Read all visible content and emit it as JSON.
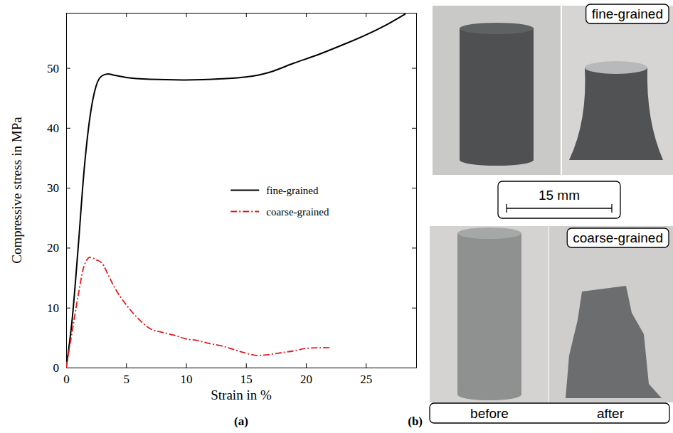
{
  "chart_data": {
    "type": "line",
    "x_label": "Strain in %",
    "y_label": "Compressive stress in MPa",
    "xlim": [
      0,
      29.2
    ],
    "ylim": [
      0,
      59.2
    ],
    "xticks": [
      0,
      5,
      10,
      15,
      20,
      25
    ],
    "yticks": [
      0,
      10,
      20,
      30,
      40,
      50
    ],
    "grid": false,
    "legend": "center right",
    "series": [
      {
        "name": "fine-grained",
        "color": "#000000",
        "line_style": "solid",
        "x": [
          0,
          0.5,
          1,
          1.5,
          2,
          2.5,
          3,
          3.5,
          4,
          5,
          7,
          10,
          13,
          15,
          16,
          17,
          19,
          21,
          23,
          25,
          27,
          28.3
        ],
        "values": [
          0,
          8,
          20,
          33,
          42,
          47,
          48.7,
          49,
          48.8,
          48.4,
          48.1,
          48,
          48.2,
          48.5,
          48.8,
          49.3,
          50.8,
          52.2,
          53.8,
          55.5,
          57.5,
          59
        ]
      },
      {
        "name": "coarse-grained",
        "color": "#e31a1c",
        "line_style": "dashdot",
        "x": [
          0,
          0.5,
          1,
          1.5,
          2,
          2.5,
          3,
          3.5,
          4,
          5,
          6,
          7,
          8,
          9,
          10,
          11,
          12,
          13,
          14,
          15,
          16,
          17,
          18,
          19,
          20,
          21,
          22
        ],
        "values": [
          0,
          6,
          12,
          17,
          18.4,
          18,
          17.4,
          15.5,
          13.5,
          10.5,
          8.2,
          6.5,
          5.9,
          5.4,
          4.8,
          4.5,
          4,
          3.6,
          3,
          2.4,
          2,
          2.2,
          2.5,
          2.8,
          3.2,
          3.3,
          3.3
        ]
      }
    ]
  },
  "figure": {
    "panel_labels": [
      "(a)",
      "(b)"
    ],
    "photos": {
      "top_label": "fine-grained",
      "bottom_label": "coarse-grained",
      "scale_bar": "15 mm",
      "columns": [
        "before",
        "after"
      ]
    }
  }
}
